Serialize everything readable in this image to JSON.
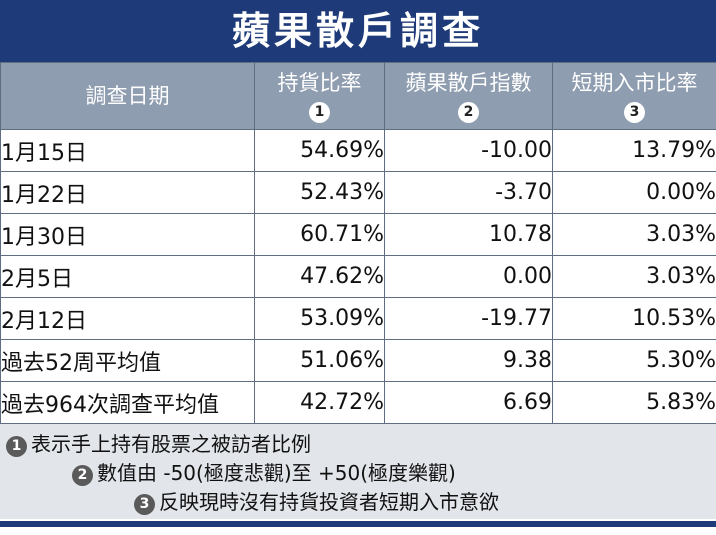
{
  "title": "蘋果散戶調查",
  "columns": [
    {
      "label": "調查日期",
      "marker": ""
    },
    {
      "label": "持貨比率",
      "marker": "1"
    },
    {
      "label": "蘋果散戶指數",
      "marker": "2"
    },
    {
      "label": "短期入市比率",
      "marker": "3"
    }
  ],
  "rows": [
    {
      "date": "1月15日",
      "holding": "54.69%",
      "index": "-10.00",
      "entry": "13.79%"
    },
    {
      "date": "1月22日",
      "holding": "52.43%",
      "index": "-3.70",
      "entry": "0.00%"
    },
    {
      "date": "1月30日",
      "holding": "60.71%",
      "index": "10.78",
      "entry": "3.03%"
    },
    {
      "date": "2月5日",
      "holding": "47.62%",
      "index": "0.00",
      "entry": "3.03%"
    },
    {
      "date": "2月12日",
      "holding": "53.09%",
      "index": "-19.77",
      "entry": "10.53%"
    },
    {
      "date": "過去52周平均值",
      "holding": "51.06%",
      "index": "9.38",
      "entry": "5.30%"
    },
    {
      "date": "過去964次調查平均值",
      "holding": "42.72%",
      "index": "6.69",
      "entry": "5.83%"
    }
  ],
  "notes": [
    {
      "marker": "1",
      "text": "表示手上持有股票之被訪者比例"
    },
    {
      "marker": "2",
      "text": "數值由 -50(極度悲觀)至 +50(極度樂觀)"
    },
    {
      "marker": "3",
      "text": "反映現時沒有持貨投資者短期入市意欲"
    }
  ],
  "colors": {
    "title_bg": "#1e3a78",
    "header_bg": "#8f9db0",
    "notes_bg": "#e2e5ea"
  }
}
